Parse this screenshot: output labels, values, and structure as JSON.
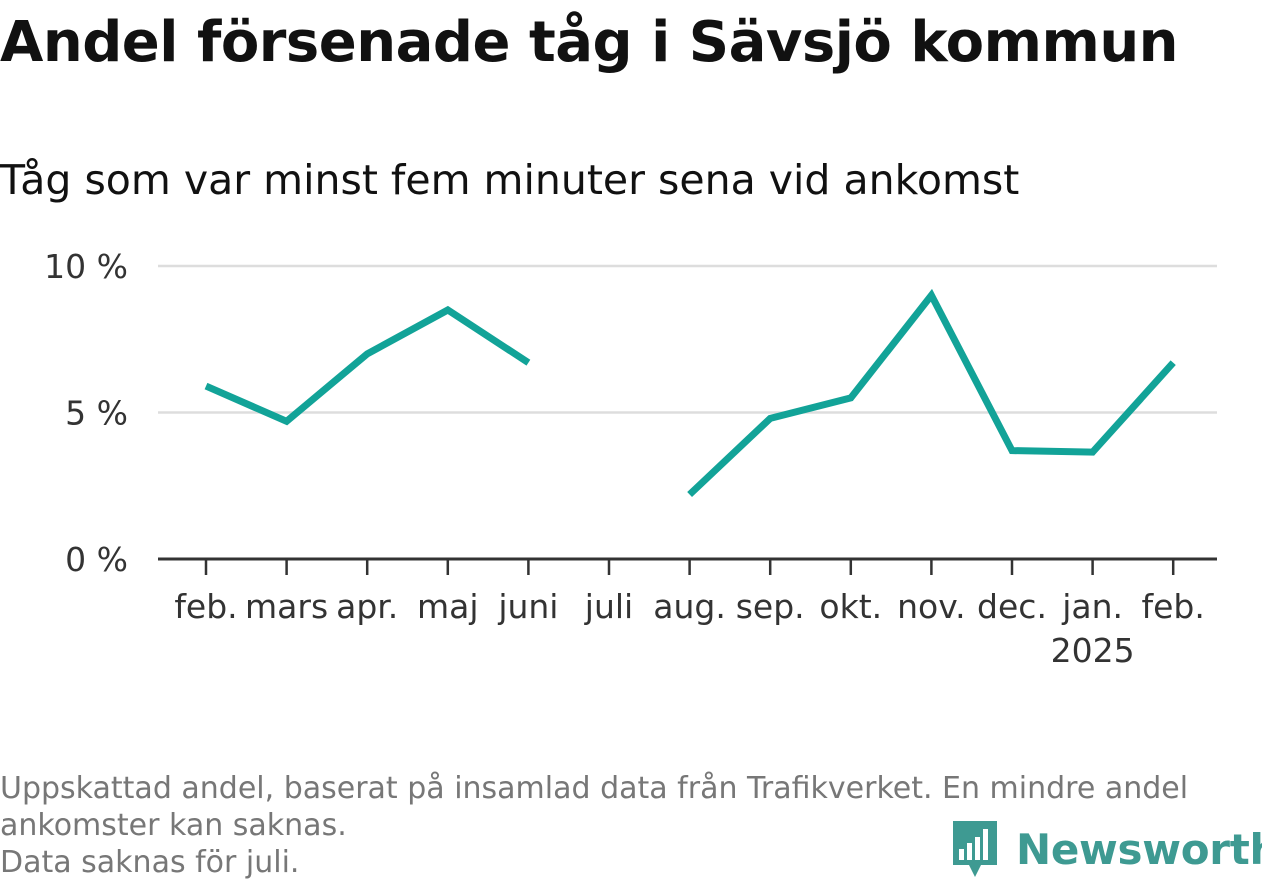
{
  "header": {
    "title": "Andel försenade tåg i Sävsjö kommun",
    "subtitle": "Tåg som var minst fem minuter sena vid ankomst"
  },
  "footnote": {
    "lines": [
      "Uppskattad andel, baserat på insamlad data från Trafikverket. En mindre andel",
      "ankomster kan saknas.",
      "Data saknas för juli."
    ]
  },
  "logo": {
    "text": "Newsworthy",
    "icon": "newsworthy-logo-icon"
  },
  "colors": {
    "line": "#12a398",
    "grid": "#dddddd",
    "axis": "#333333",
    "text": "#333333",
    "logo": "#3e9a92"
  },
  "chart_data": {
    "type": "line",
    "title": "Andel försenade tåg i Sävsjö kommun",
    "subtitle": "Tåg som var minst fem minuter sena vid ankomst",
    "categories": [
      "feb.",
      "mars",
      "apr.",
      "maj",
      "juni",
      "juli",
      "aug.",
      "sep.",
      "okt.",
      "nov.",
      "dec.",
      "jan.",
      "feb."
    ],
    "year_labels": [
      "",
      "",
      "",
      "",
      "",
      "",
      "",
      "",
      "",
      "",
      "",
      "2025",
      ""
    ],
    "series": [
      {
        "values": [
          5.9,
          4.7,
          7.0,
          8.5,
          6.7,
          null,
          2.2,
          4.8,
          5.5,
          9.0,
          3.7,
          3.65,
          6.7
        ]
      }
    ],
    "y_ticks": [
      0,
      5,
      10
    ],
    "y_tick_labels": [
      "0 %",
      "5 %",
      "10 %"
    ],
    "ylim": [
      0,
      10
    ],
    "grid": true,
    "legend": "none"
  }
}
